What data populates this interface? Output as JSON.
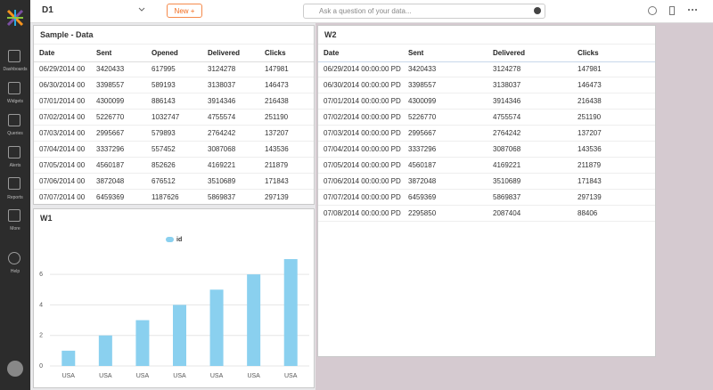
{
  "header": {
    "title": "D1",
    "new_button": "New +",
    "search_placeholder": "Ask a question of your data..."
  },
  "sidebar": [
    "Dashboards",
    "Widgets",
    "Queries",
    "Alerts",
    "Reports",
    "More",
    "Help"
  ],
  "sample_data": {
    "title": "Sample - Data",
    "columns": [
      "Date",
      "Sent",
      "Opened",
      "Delivered",
      "Clicks"
    ],
    "rows": [
      [
        "06/29/2014 00",
        3420433,
        617995,
        3124278,
        147981
      ],
      [
        "06/30/2014 00",
        3398557,
        589193,
        3138037,
        146473
      ],
      [
        "07/01/2014 00",
        4300099,
        886143,
        3914346,
        216438
      ],
      [
        "07/02/2014 00",
        5226770,
        1032747,
        4755574,
        251190
      ],
      [
        "07/03/2014 00",
        2995667,
        579893,
        2764242,
        137207
      ],
      [
        "07/04/2014 00",
        3337296,
        557452,
        3087068,
        143536
      ],
      [
        "07/05/2014 00",
        4560187,
        852626,
        4169221,
        211879
      ],
      [
        "07/06/2014 00",
        3872048,
        676512,
        3510689,
        171843
      ],
      [
        "07/07/2014 00",
        6459369,
        1187626,
        5869837,
        297139
      ]
    ]
  },
  "w2": {
    "title": "W2",
    "columns": [
      "Date",
      "Sent",
      "Delivered",
      "Clicks"
    ],
    "rows": [
      [
        "06/29/2014 00:00:00 PD",
        3420433,
        3124278,
        147981
      ],
      [
        "06/30/2014 00:00:00 PD",
        3398557,
        3138037,
        146473
      ],
      [
        "07/01/2014 00:00:00 PD",
        4300099,
        3914346,
        216438
      ],
      [
        "07/02/2014 00:00:00 PD",
        5226770,
        4755574,
        251190
      ],
      [
        "07/03/2014 00:00:00 PD",
        2995667,
        2764242,
        137207
      ],
      [
        "07/04/2014 00:00:00 PD",
        3337296,
        3087068,
        143536
      ],
      [
        "07/05/2014 00:00:00 PD",
        4560187,
        4169221,
        211879
      ],
      [
        "07/06/2014 00:00:00 PD",
        3872048,
        3510689,
        171843
      ],
      [
        "07/07/2014 00:00:00 PD",
        6459369,
        5869837,
        297139
      ],
      [
        "07/08/2014 00:00:00 PD",
        2295850,
        2087404,
        88406
      ]
    ]
  },
  "chart_data": {
    "type": "bar",
    "title": "W1",
    "categories": [
      "USA",
      "USA",
      "USA",
      "USA",
      "USA",
      "USA",
      "USA"
    ],
    "series": [
      {
        "name": "id",
        "color": "#8ad0ef",
        "values": [
          1,
          2,
          3,
          4,
          5,
          6,
          7
        ]
      }
    ],
    "ylim": [
      0,
      7
    ],
    "yticks": [
      0,
      2,
      4,
      6
    ],
    "grid": true,
    "legend": "top"
  }
}
